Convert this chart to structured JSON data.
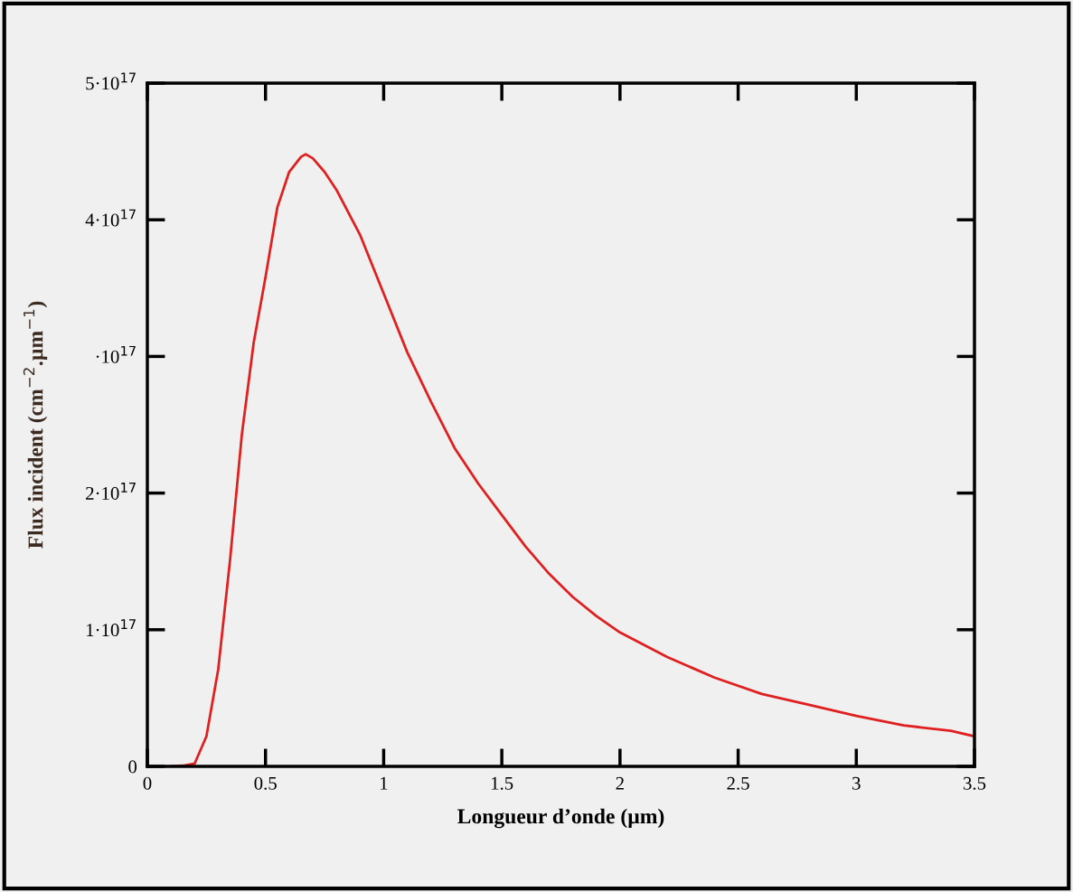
{
  "chart_data": {
    "type": "line",
    "xlabel": "Longueur d’onde (µm)",
    "ylabel": "Flux incident (cm$^{−2}$.µm$^{−1}$)",
    "x": [
      0.1,
      0.15,
      0.2,
      0.25,
      0.3,
      0.35,
      0.4,
      0.45,
      0.5,
      0.55,
      0.6,
      0.65,
      0.67,
      0.7,
      0.75,
      0.8,
      0.9,
      1.0,
      1.1,
      1.2,
      1.3,
      1.4,
      1.5,
      1.6,
      1.7,
      1.8,
      1.9,
      2.0,
      2.2,
      2.4,
      2.6,
      2.8,
      3.0,
      3.2,
      3.4,
      3.5
    ],
    "series": [
      {
        "color": "#e02020",
        "values": [
          0,
          500000000000000.0,
          2000000000000000.0,
          2.2e+16,
          7.1e+16,
          1.51e+17,
          2.43e+17,
          3.1e+17,
          3.58e+17,
          4.09e+17,
          4.35e+17,
          4.46e+17,
          4.48e+17,
          4.45e+17,
          4.35e+17,
          4.22e+17,
          3.89e+17,
          3.46e+17,
          3.03e+17,
          2.67e+17,
          2.33e+17,
          2.07e+17,
          1.84e+17,
          1.61e+17,
          1.41e+17,
          1.24e+17,
          1.1e+17,
          9.8e+16,
          8e+16,
          6.5e+16,
          5.3e+16,
          4.5e+16,
          3.7e+16,
          3e+16,
          2.6e+16,
          2.2e+16
        ]
      }
    ],
    "xlim": [
      0,
      3.5
    ],
    "ylim": [
      0,
      5e+17
    ],
    "xticks": [
      0,
      0.5,
      1,
      1.5,
      2,
      2.5,
      3,
      3.5
    ],
    "yticks": [
      {
        "value": 0,
        "label": "0"
      },
      {
        "value": 1e+17,
        "label": "1·10$^{17}$"
      },
      {
        "value": 2e+17,
        "label": "2·10$^{17}$"
      },
      {
        "value": 3e+17,
        "label": "·10$^{17}$"
      },
      {
        "value": 4e+17,
        "label": "4·10$^{17}$"
      },
      {
        "value": 5e+17,
        "label": "5·10$^{17}$"
      }
    ],
    "grid": false,
    "legend": false,
    "marker": "none",
    "line_style": "solid"
  }
}
